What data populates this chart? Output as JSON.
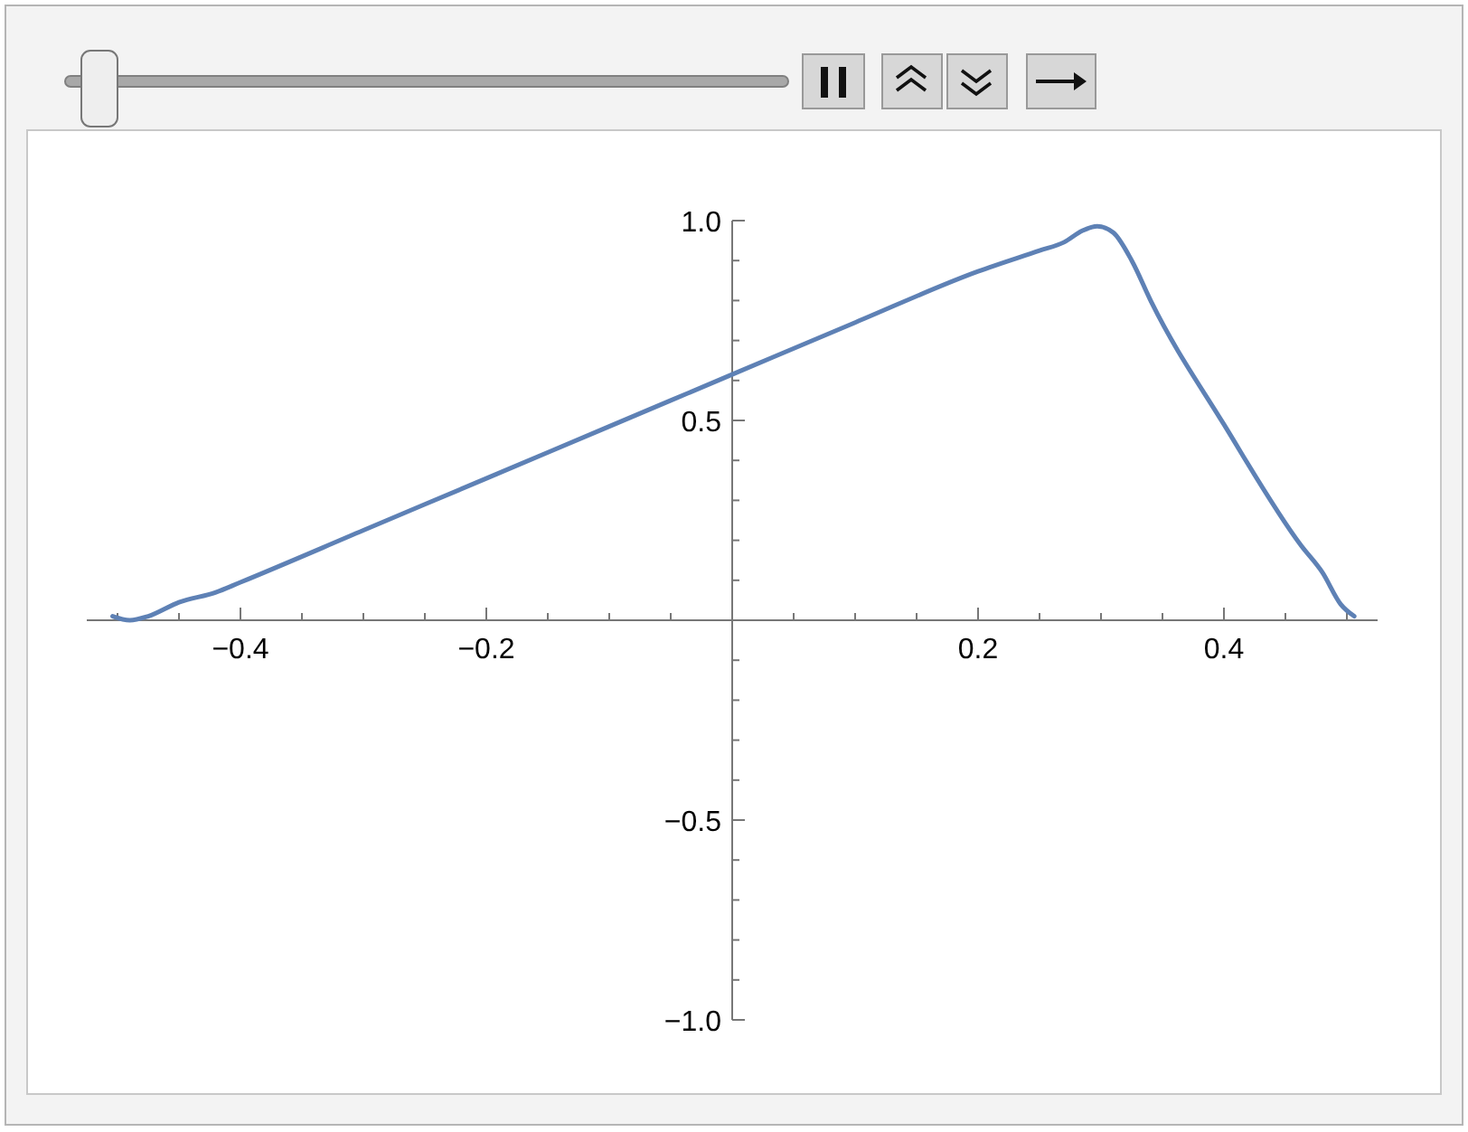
{
  "chart_data": {
    "type": "line",
    "xlim": [
      -0.525,
      0.525
    ],
    "ylim": [
      -1,
      1
    ],
    "xticks": [
      {
        "value": -0.5,
        "label": null
      },
      {
        "value": -0.45,
        "label": null
      },
      {
        "value": -0.4,
        "label": "−0.4"
      },
      {
        "value": -0.35,
        "label": null
      },
      {
        "value": -0.3,
        "label": null
      },
      {
        "value": -0.25,
        "label": null
      },
      {
        "value": -0.2,
        "label": "−0.2"
      },
      {
        "value": -0.15,
        "label": null
      },
      {
        "value": -0.1,
        "label": null
      },
      {
        "value": -0.05,
        "label": null
      },
      {
        "value": 0.05,
        "label": null
      },
      {
        "value": 0.1,
        "label": null
      },
      {
        "value": 0.15,
        "label": null
      },
      {
        "value": 0.2,
        "label": "0.2"
      },
      {
        "value": 0.25,
        "label": null
      },
      {
        "value": 0.3,
        "label": null
      },
      {
        "value": 0.35,
        "label": null
      },
      {
        "value": 0.4,
        "label": "0.4"
      },
      {
        "value": 0.45,
        "label": null
      },
      {
        "value": 0.5,
        "label": null
      }
    ],
    "yticks": [
      {
        "value": -1,
        "label": "−1.0"
      },
      {
        "value": -0.9,
        "label": null
      },
      {
        "value": -0.8,
        "label": null
      },
      {
        "value": -0.7,
        "label": null
      },
      {
        "value": -0.6,
        "label": null
      },
      {
        "value": -0.5,
        "label": "−0.5"
      },
      {
        "value": -0.4,
        "label": null
      },
      {
        "value": -0.3,
        "label": null
      },
      {
        "value": -0.2,
        "label": null
      },
      {
        "value": -0.1,
        "label": null
      },
      {
        "value": 0.1,
        "label": null
      },
      {
        "value": 0.2,
        "label": null
      },
      {
        "value": 0.3,
        "label": null
      },
      {
        "value": 0.4,
        "label": null
      },
      {
        "value": 0.5,
        "label": "0.5"
      },
      {
        "value": 0.6,
        "label": null
      },
      {
        "value": 0.7,
        "label": null
      },
      {
        "value": 0.8,
        "label": null
      },
      {
        "value": 0.9,
        "label": null
      },
      {
        "value": 1,
        "label": "1.0"
      }
    ],
    "grid": false,
    "line_style": "solid",
    "marker": "none",
    "series": [
      {
        "color": "#5e81b5",
        "x": [
          -0.504,
          -0.49,
          -0.475,
          -0.45,
          -0.42,
          -0.4,
          -0.3,
          -0.2,
          -0.1,
          0,
          0.1,
          0.2,
          0.25,
          0.27,
          0.285,
          0.297,
          0.31,
          0.325,
          0.341,
          0.4,
          0.463,
          0.48,
          0.495,
          0.506
        ],
        "values": [
          0.01,
          0.0,
          0.01,
          0.045,
          0.07,
          0.095,
          0.225,
          0.355,
          0.485,
          0.615,
          0.745,
          0.873,
          0.925,
          0.946,
          0.975,
          0.986,
          0.97,
          0.9,
          0.796,
          0.49,
          0.186,
          0.12,
          0.04,
          0.01
        ]
      }
    ]
  }
}
